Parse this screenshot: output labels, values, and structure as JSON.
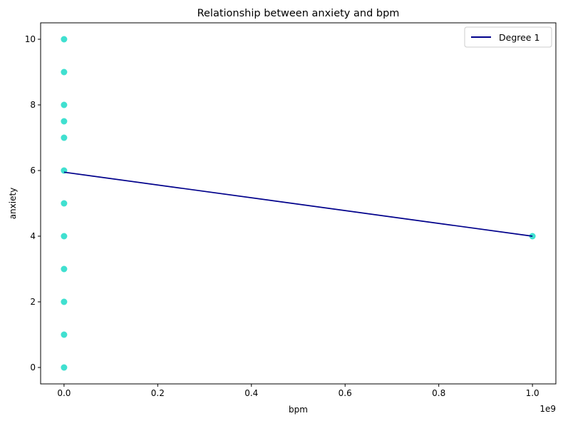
{
  "chart_data": {
    "type": "scatter",
    "title": "Relationship between anxiety and bpm",
    "xlabel": "bpm",
    "ylabel": "anxiety",
    "x_offset_label": "1e9",
    "xlim": [
      -0.05,
      1.05
    ],
    "ylim": [
      -0.5,
      10.5
    ],
    "x_ticks": [
      0.0,
      0.2,
      0.4,
      0.6,
      0.8,
      1.0
    ],
    "x_tick_labels": [
      "0.0",
      "0.2",
      "0.4",
      "0.6",
      "0.8",
      "1.0"
    ],
    "y_ticks": [
      0,
      2,
      4,
      6,
      8,
      10
    ],
    "y_tick_labels": [
      "0",
      "2",
      "4",
      "6",
      "8",
      "10"
    ],
    "grid": false,
    "legend_position": "top-right",
    "colors": {
      "points": "#40e0d0",
      "fit_line": "#00008b"
    },
    "points": [
      {
        "x": 0.0,
        "y": 0
      },
      {
        "x": 0.0,
        "y": 1
      },
      {
        "x": 0.0,
        "y": 2
      },
      {
        "x": 0.0,
        "y": 3
      },
      {
        "x": 0.0,
        "y": 4
      },
      {
        "x": 0.0,
        "y": 5
      },
      {
        "x": 0.0,
        "y": 6
      },
      {
        "x": 0.0,
        "y": 7
      },
      {
        "x": 0.0,
        "y": 7.5
      },
      {
        "x": 0.0,
        "y": 8
      },
      {
        "x": 0.0,
        "y": 9
      },
      {
        "x": 0.0,
        "y": 10
      },
      {
        "x": 1.0,
        "y": 4
      }
    ],
    "series": [
      {
        "name": "Degree 1",
        "x": [
          0.0,
          1.0
        ],
        "y": [
          5.95,
          4.0
        ]
      }
    ]
  }
}
